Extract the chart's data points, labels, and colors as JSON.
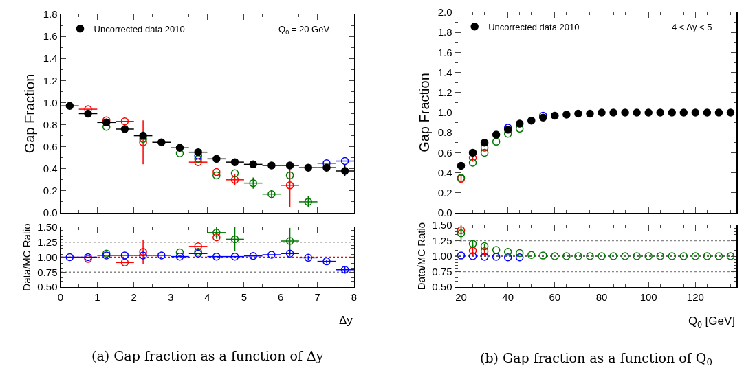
{
  "chart_data": [
    {
      "type": "scatter",
      "ylabel": "Gap Fraction",
      "annotations": [
        "Q$_{0}$ = 20 GeV"
      ],
      "x": [
        0.25,
        0.75,
        1.25,
        1.75,
        2.25,
        2.75,
        3.25,
        3.75,
        4.25,
        4.75,
        5.25,
        5.75,
        6.25,
        6.75,
        7.25,
        7.75
      ],
      "series": [
        {
          "color": "#0000ff",
          "values": [
            null,
            null,
            null,
            null,
            null,
            null,
            null,
            0.52,
            null,
            null,
            null,
            null,
            null,
            null,
            0.45,
            0.47
          ],
          "xerrors": [
            null,
            null,
            null,
            null,
            null,
            null,
            null,
            null,
            null,
            null,
            null,
            null,
            null,
            null,
            0.25,
            0.25
          ]
        },
        {
          "color": "#ff0000",
          "values": [
            null,
            0.94,
            0.84,
            0.83,
            0.64,
            null,
            null,
            0.46,
            0.37,
            0.3,
            null,
            null,
            0.25,
            null,
            null,
            null
          ],
          "errors": [
            null,
            null,
            null,
            null,
            0.2,
            null,
            null,
            null,
            null,
            0.05,
            null,
            null,
            0.2,
            null,
            null,
            null
          ],
          "xerrors": [
            null,
            0.25,
            null,
            0.25,
            null,
            null,
            null,
            0.25,
            null,
            0.25,
            null,
            null,
            0.25,
            null,
            null,
            null
          ]
        },
        {
          "color": "#007700",
          "values": [
            null,
            null,
            0.78,
            null,
            0.67,
            null,
            0.54,
            0.49,
            0.34,
            0.36,
            0.27,
            0.17,
            0.34,
            0.1,
            null,
            null
          ],
          "errors": [
            null,
            null,
            null,
            null,
            null,
            null,
            null,
            null,
            null,
            null,
            0.05,
            0.04,
            null,
            0.05,
            null,
            null
          ],
          "xerrors": [
            null,
            null,
            null,
            null,
            null,
            null,
            null,
            null,
            null,
            null,
            0.25,
            0.25,
            null,
            0.25,
            null,
            null
          ]
        },
        {
          "name": "Uncorrected data 2010",
          "color": "#000000",
          "values": [
            0.97,
            0.9,
            0.82,
            0.76,
            0.7,
            0.64,
            0.59,
            0.55,
            0.49,
            0.46,
            0.44,
            0.43,
            0.43,
            0.41,
            0.41,
            0.38
          ],
          "errors": [
            null,
            null,
            null,
            null,
            null,
            null,
            null,
            null,
            null,
            null,
            null,
            null,
            0.03,
            null,
            null,
            0.05
          ],
          "xerrors": [
            0.25,
            0.25,
            0.25,
            0.25,
            0.25,
            0.25,
            0.25,
            0.25,
            0.25,
            0.25,
            0.25,
            0.25,
            0.25,
            0.25,
            0.25,
            0.25
          ]
        }
      ],
      "xlim": [
        0,
        8
      ],
      "xticks": [
        0,
        1,
        2,
        3,
        4,
        5,
        6,
        7,
        8
      ],
      "ylim": [
        0,
        1.8
      ],
      "yticks": [
        {
          "value": 0,
          "label": "0.0"
        },
        0.2,
        0.4,
        0.6,
        0.8,
        {
          "value": 1,
          "label": "1.0"
        },
        1.2,
        1.4,
        1.6,
        1.8
      ],
      "tick_labels": "y",
      "marker": "circle",
      "legend": "top left",
      "grid": false
    },
    {
      "type": "scatter",
      "xlabel": "Δy",
      "ylabel": "Data/MC Ratio",
      "annotations": [
        "(a) Gap fraction as a function of Δy"
      ],
      "x": [
        0.25,
        0.75,
        1.25,
        1.75,
        2.25,
        2.75,
        3.25,
        3.75,
        4.25,
        4.75,
        5.25,
        5.75,
        6.25,
        6.75,
        7.25,
        7.75
      ],
      "series": [
        {
          "color": "#007700",
          "values": [
            null,
            null,
            1.06,
            null,
            null,
            null,
            1.08,
            1.09,
            1.41,
            1.3,
            null,
            null,
            1.27,
            null,
            null,
            null
          ],
          "errors": [
            null,
            null,
            null,
            null,
            null,
            null,
            null,
            null,
            0.1,
            0.2,
            null,
            null,
            0.22,
            null,
            null,
            null
          ],
          "xerrors": [
            null,
            null,
            null,
            null,
            null,
            null,
            null,
            null,
            0.25,
            0.25,
            null,
            null,
            0.25,
            null,
            null,
            null
          ]
        },
        {
          "color": "#ff0000",
          "values": [
            null,
            0.97,
            null,
            0.91,
            1.09,
            null,
            null,
            1.18,
            1.33,
            null,
            null,
            null,
            null,
            null,
            null,
            null
          ],
          "errors": [
            null,
            null,
            null,
            null,
            0.2,
            null,
            null,
            null,
            null,
            null,
            null,
            null,
            null,
            null,
            null,
            null
          ],
          "xerrors": [
            null,
            null,
            null,
            0.25,
            null,
            null,
            null,
            0.25,
            null,
            null,
            null,
            null,
            null,
            null,
            null,
            null
          ]
        },
        {
          "color": "#0000ff",
          "values": [
            1.0,
            1.0,
            1.03,
            1.03,
            1.03,
            1.03,
            1.01,
            1.06,
            1.01,
            1.01,
            1.02,
            1.04,
            1.06,
            0.99,
            0.93,
            0.79
          ],
          "errors": [
            null,
            null,
            null,
            null,
            null,
            null,
            null,
            null,
            null,
            null,
            null,
            null,
            0.04,
            0.03,
            0.03,
            0.06
          ],
          "xerrors": [
            0.25,
            0.25,
            0.25,
            0.25,
            0.25,
            0.25,
            0.25,
            0.25,
            0.25,
            0.25,
            0.25,
            0.25,
            0.25,
            0.25,
            0.25,
            0.25
          ]
        }
      ],
      "ref_lines": [
        {
          "axis": "y",
          "value": 0.75,
          "color": "#888888",
          "line_style": "dotted"
        },
        {
          "axis": "y",
          "value": 1.25,
          "color": "#888888",
          "line_style": "dotted"
        },
        {
          "axis": "y",
          "value": 1.0,
          "color": "#ff0000",
          "line_style": "dotted"
        }
      ],
      "xlim": [
        0,
        8
      ],
      "xticks": [
        0,
        1,
        2,
        3,
        4,
        5,
        6,
        7,
        8
      ],
      "ylim": [
        0.5,
        1.5
      ],
      "yticks": [
        {
          "value": 0.5,
          "label": "0.50"
        },
        {
          "value": 0.75,
          "label": "0.75"
        },
        {
          "value": 1.0,
          "label": "1.00"
        },
        {
          "value": 1.25,
          "label": "1.25"
        },
        {
          "value": 1.5,
          "label": "1.50"
        }
      ],
      "marker": "circle",
      "legend": false,
      "grid": false
    },
    {
      "type": "scatter",
      "ylabel": "Gap Fraction",
      "annotations": [
        "4 < Δy < 5"
      ],
      "x": [
        20,
        25,
        30,
        35,
        40,
        45,
        50,
        55,
        60,
        65,
        70,
        75,
        80,
        85,
        90,
        95,
        100,
        105,
        110,
        115,
        120,
        125,
        130,
        135
      ],
      "series": [
        {
          "color": "#0000ff",
          "values": [
            null,
            null,
            null,
            null,
            0.85,
            null,
            null,
            0.97,
            null,
            null,
            null,
            null,
            null,
            null,
            null,
            null,
            null,
            null,
            null,
            null,
            null,
            null,
            null,
            null
          ]
        },
        {
          "color": "#ff0000",
          "values": [
            0.34,
            0.55,
            0.65,
            null,
            null,
            null,
            null,
            null,
            null,
            null,
            null,
            null,
            null,
            null,
            null,
            null,
            null,
            null,
            null,
            null,
            null,
            null,
            null,
            null
          ],
          "errors": [
            0.04,
            0.03,
            null,
            null,
            null,
            null,
            null,
            null,
            null,
            null,
            null,
            null,
            null,
            null,
            null,
            null,
            null,
            null,
            null,
            null,
            null,
            null,
            null,
            null
          ]
        },
        {
          "color": "#007700",
          "values": [
            0.35,
            0.5,
            0.6,
            0.71,
            0.79,
            0.84,
            null,
            null,
            null,
            null,
            null,
            null,
            null,
            null,
            null,
            null,
            null,
            null,
            null,
            null,
            null,
            null,
            null,
            null
          ]
        },
        {
          "name": "Uncorrected data 2010",
          "color": "#000000",
          "values": [
            0.47,
            0.6,
            0.7,
            0.78,
            0.83,
            0.89,
            0.92,
            0.95,
            0.97,
            0.98,
            0.99,
            0.99,
            1.0,
            1.0,
            1.0,
            1.0,
            1.0,
            1.0,
            1.0,
            1.0,
            1.0,
            1.0,
            1.0,
            1.0
          ]
        }
      ],
      "xlim": [
        17.5,
        137.5
      ],
      "xticks": [
        20,
        40,
        60,
        80,
        100,
        120
      ],
      "ylim": [
        0,
        2
      ],
      "yticks": [
        {
          "value": 0,
          "label": "0.0"
        },
        0.2,
        0.4,
        0.6,
        0.8,
        {
          "value": 1,
          "label": "1.0"
        },
        1.2,
        1.4,
        1.6,
        1.8,
        {
          "value": 2,
          "label": "2.0"
        }
      ],
      "tick_labels": "y",
      "marker": "circle",
      "legend": "top left",
      "grid": false
    },
    {
      "type": "scatter",
      "xlabel": "Q$_{0}$ [GeV]",
      "ylabel": "Data/MC Ratio",
      "annotations": [
        "(b) Gap fraction as a function of Q$_{0}$"
      ],
      "x": [
        20,
        25,
        30,
        35,
        40,
        45,
        50,
        55,
        60,
        65,
        70,
        75,
        80,
        85,
        90,
        95,
        100,
        105,
        110,
        115,
        120,
        125,
        130,
        135
      ],
      "series": [
        {
          "color": "#0000ff",
          "values": [
            1.01,
            1.0,
            0.99,
            0.99,
            0.98,
            0.98,
            null,
            null,
            null,
            null,
            null,
            null,
            null,
            null,
            null,
            null,
            null,
            null,
            null,
            null,
            null,
            null,
            null,
            null
          ]
        },
        {
          "color": "#ff0000",
          "values": [
            1.42,
            1.09,
            1.08,
            null,
            null,
            null,
            null,
            null,
            null,
            null,
            null,
            null,
            null,
            null,
            null,
            null,
            null,
            null,
            null,
            null,
            null,
            null,
            null,
            null
          ],
          "errors": [
            0.06,
            0.09,
            0.05,
            null,
            null,
            null,
            null,
            null,
            null,
            null,
            null,
            null,
            null,
            null,
            null,
            null,
            null,
            null,
            null,
            null,
            null,
            null,
            null,
            null
          ]
        },
        {
          "color": "#007700",
          "values": [
            1.37,
            1.2,
            1.16,
            1.1,
            1.07,
            1.05,
            1.02,
            1.01,
            1.0,
            1.0,
            1.0,
            1.0,
            1.0,
            1.0,
            1.0,
            1.0,
            1.0,
            1.0,
            1.0,
            1.0,
            1.0,
            1.0,
            1.0,
            1.0
          ],
          "errors": [
            0.15,
            0.06,
            0.03,
            null,
            null,
            null,
            null,
            null,
            null,
            null,
            null,
            null,
            null,
            null,
            null,
            null,
            null,
            null,
            null,
            null,
            null,
            null,
            null,
            null
          ]
        }
      ],
      "ref_lines": [
        {
          "axis": "y",
          "value": 0.75,
          "color": "#888888",
          "line_style": "dotted"
        },
        {
          "axis": "y",
          "value": 1.25,
          "color": "#888888",
          "line_style": "dotted"
        },
        {
          "axis": "y",
          "value": 1.0,
          "color": "#333333",
          "line_style": "dotted"
        }
      ],
      "xlim": [
        17.5,
        137.5
      ],
      "xticks": [
        20,
        40,
        60,
        80,
        100,
        120
      ],
      "ylim": [
        0.5,
        1.5
      ],
      "yticks": [
        {
          "value": 0.5,
          "label": "0.50"
        },
        {
          "value": 0.75,
          "label": "0.75"
        },
        {
          "value": 1.0,
          "label": "1.00"
        },
        {
          "value": 1.25,
          "label": "1.25"
        },
        {
          "value": 1.5,
          "label": "1.50"
        }
      ],
      "marker": "circle",
      "legend": false,
      "grid": false
    }
  ]
}
